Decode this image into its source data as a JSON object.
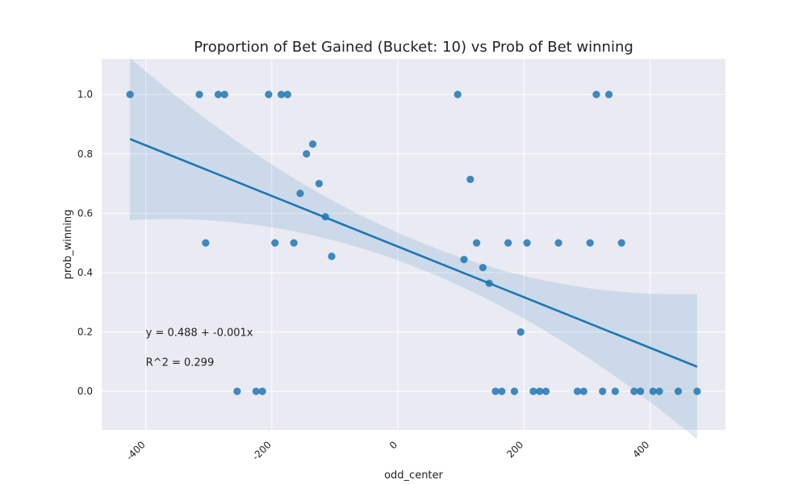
{
  "chart_data": {
    "type": "scatter",
    "title": "Proportion of Bet Gained (Bucket: 10) vs Prob of Bet winning",
    "xlabel": "odd_center",
    "ylabel": "prob_winning",
    "xlim": [
      -470,
      520
    ],
    "ylim": [
      -0.13,
      1.12
    ],
    "xticks": [
      -400,
      -200,
      0,
      200,
      400
    ],
    "yticks": [
      0.0,
      0.2,
      0.4,
      0.6,
      0.8,
      1.0
    ],
    "xtick_labels": [
      "-400",
      "-200",
      "0",
      "200",
      "400"
    ],
    "ytick_labels": [
      "0.0",
      "0.2",
      "0.4",
      "0.6",
      "0.8",
      "1.0"
    ],
    "grid": true,
    "point_color": "#1f77b4",
    "background_color": "#eaeaf2",
    "regression": {
      "intercept": 0.488,
      "slope": -0.001,
      "x_range": [
        -425,
        475
      ],
      "y_range": [
        0.85,
        0.083
      ],
      "ci_color": "#1f77b4",
      "line_color": "#1f77b4"
    },
    "annotations": [
      {
        "text": "y = 0.488 + -0.001x",
        "x": -400,
        "y": 0.2
      },
      {
        "text": "R^2 = 0.299",
        "x": -400,
        "y": 0.1
      }
    ],
    "points": [
      {
        "x": -425,
        "y": 1.0
      },
      {
        "x": -315,
        "y": 1.0
      },
      {
        "x": -285,
        "y": 1.0
      },
      {
        "x": -275,
        "y": 1.0
      },
      {
        "x": -205,
        "y": 1.0
      },
      {
        "x": -185,
        "y": 1.0
      },
      {
        "x": -175,
        "y": 1.0
      },
      {
        "x": -305,
        "y": 0.5
      },
      {
        "x": -255,
        "y": 0.0
      },
      {
        "x": -225,
        "y": 0.0
      },
      {
        "x": -215,
        "y": 0.0
      },
      {
        "x": -195,
        "y": 0.5
      },
      {
        "x": -165,
        "y": 0.5
      },
      {
        "x": -155,
        "y": 0.667
      },
      {
        "x": -145,
        "y": 0.8
      },
      {
        "x": -135,
        "y": 0.833
      },
      {
        "x": -125,
        "y": 0.7
      },
      {
        "x": -115,
        "y": 0.588
      },
      {
        "x": -105,
        "y": 0.455
      },
      {
        "x": 95,
        "y": 1.0
      },
      {
        "x": 105,
        "y": 0.444
      },
      {
        "x": 115,
        "y": 0.714
      },
      {
        "x": 125,
        "y": 0.5
      },
      {
        "x": 135,
        "y": 0.417
      },
      {
        "x": 145,
        "y": 0.364
      },
      {
        "x": 155,
        "y": 0.0
      },
      {
        "x": 165,
        "y": 0.0
      },
      {
        "x": 175,
        "y": 0.5
      },
      {
        "x": 185,
        "y": 0.0
      },
      {
        "x": 195,
        "y": 0.2
      },
      {
        "x": 205,
        "y": 0.5
      },
      {
        "x": 215,
        "y": 0.0
      },
      {
        "x": 225,
        "y": 0.0
      },
      {
        "x": 235,
        "y": 0.0
      },
      {
        "x": 255,
        "y": 0.5
      },
      {
        "x": 285,
        "y": 0.0
      },
      {
        "x": 295,
        "y": 0.0
      },
      {
        "x": 305,
        "y": 0.5
      },
      {
        "x": 315,
        "y": 1.0
      },
      {
        "x": 325,
        "y": 0.0
      },
      {
        "x": 335,
        "y": 1.0
      },
      {
        "x": 345,
        "y": 0.0
      },
      {
        "x": 355,
        "y": 0.5
      },
      {
        "x": 375,
        "y": 0.0
      },
      {
        "x": 385,
        "y": 0.0
      },
      {
        "x": 405,
        "y": 0.0
      },
      {
        "x": 415,
        "y": 0.0
      },
      {
        "x": 445,
        "y": 0.0
      },
      {
        "x": 475,
        "y": 0.0
      }
    ]
  }
}
